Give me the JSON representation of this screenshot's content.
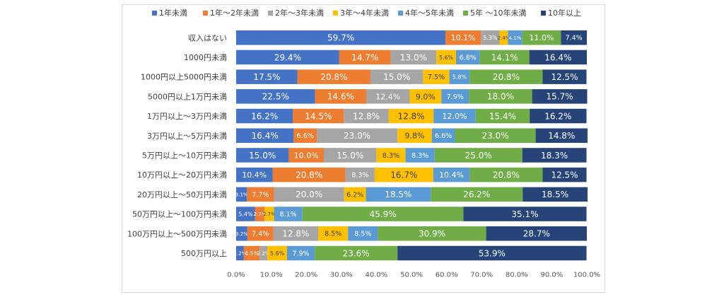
{
  "chart_data": {
    "type": "bar",
    "orientation": "horizontal",
    "stacked": "percent",
    "categories": [
      "収入はない",
      "1000円未満",
      "1000円以上5000円未満",
      "5000円以上1万円未満",
      "1万円以上～3万円未満",
      "3万円以上～5万円未満",
      "5万円以上～10万円未満",
      "10万円以上～20万円未満",
      "20万円以上～50万円未満",
      "50万円以上～100万円未満",
      "100万円以上～500万円未満",
      "500万円以上"
    ],
    "series": [
      {
        "name": "1年未満",
        "color": "#4472c4",
        "label_color": "#ffffff",
        "values": [
          59.7,
          29.4,
          17.5,
          22.5,
          16.2,
          16.4,
          15.0,
          10.4,
          3.1,
          5.4,
          3.2,
          2.2
        ],
        "labels": [
          "59.7%",
          "29.4%",
          "17.5%",
          "22.5%",
          "16.2%",
          "16.4%",
          "15.0%",
          "10.4%",
          "3.1%",
          "5.4%",
          "3.2%",
          "2.2%"
        ]
      },
      {
        "name": "1年～2年未満",
        "color": "#ed7d31",
        "label_color": "#ffffff",
        "values": [
          10.1,
          14.7,
          20.8,
          14.6,
          14.5,
          6.6,
          10.0,
          20.8,
          7.7,
          2.7,
          7.4,
          4.5
        ],
        "labels": [
          "10.1%",
          "14.7%",
          "20.8%",
          "14.6%",
          "14.5%",
          "6.6%",
          "10.0%",
          "20.8%",
          "7.7%",
          "2.7%",
          "7.4%",
          "4.5%"
        ]
      },
      {
        "name": "2年～3年未満",
        "color": "#a5a5a5",
        "label_color": "#ffffff",
        "values": [
          5.3,
          13.0,
          15.0,
          12.4,
          12.8,
          23.0,
          15.0,
          8.3,
          20.0,
          0,
          12.8,
          2.2
        ],
        "labels": [
          "5.3%",
          "13.0%",
          "15.0%",
          "12.4%",
          "12.8%",
          "23.0%",
          "15.0%",
          "8.3%",
          "20.0%",
          "",
          "12.8%",
          "2.2%"
        ]
      },
      {
        "name": "3年～4年未満",
        "color": "#ffc000",
        "label_color": "#404040",
        "values": [
          2.4,
          5.6,
          7.5,
          9.0,
          12.8,
          9.8,
          8.3,
          16.7,
          6.2,
          2.7,
          8.5,
          5.6
        ],
        "labels": [
          "2.4%",
          "5.6%",
          "7.5%",
          "9.0%",
          "12.8%",
          "9.8%",
          "8.3%",
          "16.7%",
          "6.2%",
          "2.7%",
          "8.5%",
          "5.6%"
        ]
      },
      {
        "name": "4年～5年未満",
        "color": "#5b9bd5",
        "label_color": "#ffffff",
        "values": [
          4.1,
          6.8,
          5.8,
          7.9,
          12.0,
          6.6,
          8.3,
          10.4,
          18.5,
          8.1,
          8.5,
          7.9
        ],
        "labels": [
          "4.1%",
          "6.8%",
          "5.8%",
          "7.9%",
          "12.0%",
          "6.6%",
          "8.3%",
          "10.4%",
          "18.5%",
          "8.1%",
          "8.5%",
          "7.9%"
        ]
      },
      {
        "name": "5年 ～10年未満",
        "color": "#70ad47",
        "label_color": "#ffffff",
        "values": [
          11.0,
          14.1,
          20.8,
          18.0,
          15.4,
          23.0,
          25.0,
          20.8,
          26.2,
          45.9,
          30.9,
          23.6
        ],
        "labels": [
          "11.0%",
          "14.1%",
          "20.8%",
          "18.0%",
          "15.4%",
          "23.0%",
          "25.0%",
          "20.8%",
          "26.2%",
          "45.9%",
          "30.9%",
          "23.6%"
        ]
      },
      {
        "name": "10年以上",
        "color": "#264478",
        "label_color": "#ffffff",
        "values": [
          7.4,
          16.4,
          12.5,
          15.7,
          16.2,
          14.8,
          18.3,
          12.5,
          18.5,
          35.1,
          28.7,
          53.9
        ],
        "labels": [
          "7.4%",
          "16.4%",
          "12.5%",
          "15.7%",
          "16.2%",
          "14.8%",
          "18.3%",
          "12.5%",
          "18.5%",
          "35.1%",
          "28.7%",
          "53.9%"
        ]
      }
    ],
    "x_ticks": [
      "0.0%",
      "10.0%",
      "20.0%",
      "30.0%",
      "40.0%",
      "50.0%",
      "60.0%",
      "70.0%",
      "80.0%",
      "90.0%",
      "100.0%"
    ],
    "xlim": [
      0,
      100
    ],
    "grid": false,
    "legend_position": "top"
  }
}
